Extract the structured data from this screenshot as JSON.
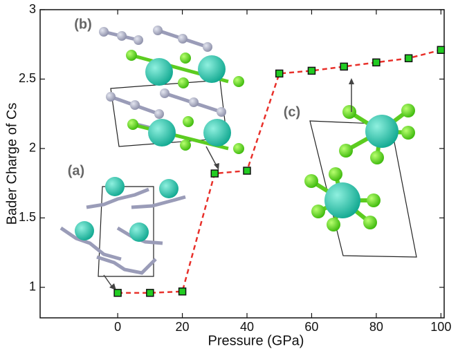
{
  "chart_data": {
    "type": "line",
    "x": [
      0,
      10,
      20,
      30,
      40,
      50,
      60,
      70,
      80,
      90,
      100
    ],
    "series": [
      {
        "values": [
          0.96,
          0.96,
          0.97,
          1.82,
          1.84,
          2.54,
          2.56,
          2.59,
          2.62,
          2.65,
          2.71
        ],
        "color": "#e8302a",
        "marker_color": "#22cc22"
      }
    ],
    "xlim": [
      -24,
      101
    ],
    "ylim": [
      0.78,
      3
    ],
    "xticks": [
      0,
      20,
      40,
      60,
      80,
      100
    ],
    "yticks": [
      1,
      1.5,
      2,
      2.5,
      3
    ],
    "xlabel": "Pressure (GPa)",
    "ylabel": "Bader Charge of Cs",
    "annotations": [
      "(a)",
      "(b)",
      "(c)"
    ]
  }
}
